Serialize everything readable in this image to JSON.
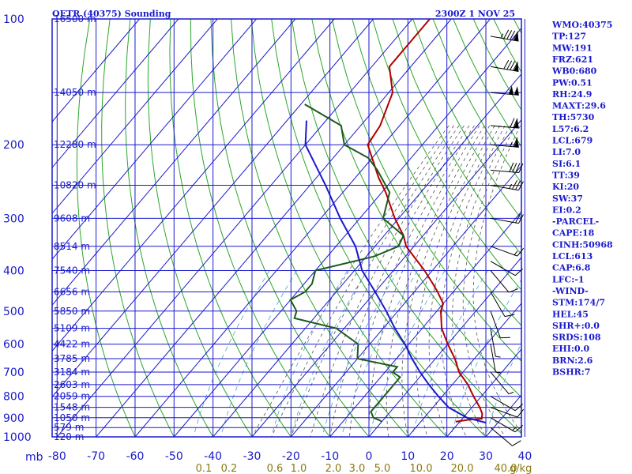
{
  "header": {
    "station": "OETR (40375) Sounding",
    "valid": "2300Z  1 NOV 25"
  },
  "chart_data": {
    "type": "line",
    "subtype": "skew-t log-p sounding",
    "pressure_axis": {
      "unit": "mb",
      "levels": [
        100,
        200,
        300,
        400,
        500,
        600,
        700,
        800,
        900,
        1000
      ]
    },
    "temperature_axis": {
      "unit": "C",
      "ticks": [
        "-80",
        "-70",
        "-60",
        "-50",
        "-40",
        "-30",
        "-20",
        "-10",
        "0",
        "10",
        "20",
        "30",
        "40"
      ]
    },
    "pressure_label": "mb",
    "heights": [
      {
        "p": 100,
        "label": "16500 m"
      },
      {
        "p": 150,
        "label": "14050 m"
      },
      {
        "p": 200,
        "label": "12280 m"
      },
      {
        "p": 250,
        "label": "10820 m"
      },
      {
        "p": 300,
        "label": "9608 m"
      },
      {
        "p": 350,
        "label": "8514 m"
      },
      {
        "p": 400,
        "label": "7540 m"
      },
      {
        "p": 450,
        "label": "6656 m"
      },
      {
        "p": 500,
        "label": "5850 m"
      },
      {
        "p": 550,
        "label": "5109 m"
      },
      {
        "p": 600,
        "label": "4422 m"
      },
      {
        "p": 650,
        "label": "3785 m"
      },
      {
        "p": 700,
        "label": "3184 m"
      },
      {
        "p": 750,
        "label": "2603 m"
      },
      {
        "p": 800,
        "label": "2059 m"
      },
      {
        "p": 850,
        "label": "1548 m"
      },
      {
        "p": 900,
        "label": "1050 m"
      },
      {
        "p": 950,
        "label": "579 m"
      },
      {
        "p": 1000,
        "label": "120 m"
      }
    ],
    "mixing_ratio": {
      "unit": "g/kg",
      "labels": [
        "0.1",
        "0.2",
        "0.6",
        "1.0",
        "2.0",
        "3.0",
        "5.0",
        "10.0",
        "20.0",
        "40.0"
      ],
      "unit_label": "g/kg"
    },
    "series": [
      {
        "name": "temperature",
        "color": "#b00000",
        "points": [
          [
            100,
            -75.5
          ],
          [
            130,
            -75.5
          ],
          [
            150,
            -69
          ],
          [
            180,
            -65
          ],
          [
            200,
            -64
          ],
          [
            240,
            -54
          ],
          [
            260,
            -49
          ],
          [
            300,
            -41
          ],
          [
            330,
            -35
          ],
          [
            350,
            -32
          ],
          [
            400,
            -22
          ],
          [
            430,
            -17
          ],
          [
            450,
            -14
          ],
          [
            480,
            -10
          ],
          [
            500,
            -9
          ],
          [
            550,
            -5
          ],
          [
            600,
            0
          ],
          [
            650,
            5
          ],
          [
            700,
            9
          ],
          [
            750,
            14
          ],
          [
            800,
            18
          ],
          [
            850,
            22
          ],
          [
            880,
            24
          ],
          [
            905,
            25
          ],
          [
            910,
            22
          ],
          [
            920,
            19
          ]
        ]
      },
      {
        "name": "dewpoint",
        "color": "#1e5a1e",
        "points": [
          [
            160,
            -89
          ],
          [
            180,
            -75
          ],
          [
            200,
            -70
          ],
          [
            215,
            -61
          ],
          [
            230,
            -56
          ],
          [
            260,
            -48
          ],
          [
            300,
            -44
          ],
          [
            330,
            -35
          ],
          [
            350,
            -34
          ],
          [
            370,
            -38
          ],
          [
            400,
            -50
          ],
          [
            430,
            -48
          ],
          [
            450,
            -48
          ],
          [
            470,
            -50
          ],
          [
            500,
            -46
          ],
          [
            520,
            -45
          ],
          [
            550,
            -32
          ],
          [
            600,
            -23
          ],
          [
            650,
            -20
          ],
          [
            680,
            -8
          ],
          [
            700,
            -8
          ],
          [
            720,
            -5
          ],
          [
            850,
            -5
          ],
          [
            870,
            -5
          ],
          [
            900,
            -3
          ],
          [
            912,
            -1
          ],
          [
            920,
            0
          ]
        ]
      },
      {
        "name": "parcel",
        "color": "#1a1acc",
        "points": [
          [
            175,
            -85
          ],
          [
            200,
            -80
          ],
          [
            250,
            -66
          ],
          [
            300,
            -55
          ],
          [
            350,
            -45
          ],
          [
            400,
            -38
          ],
          [
            450,
            -30
          ],
          [
            500,
            -23
          ],
          [
            550,
            -17
          ],
          [
            600,
            -11
          ],
          [
            650,
            -6
          ],
          [
            700,
            -1
          ],
          [
            750,
            4
          ],
          [
            800,
            9
          ],
          [
            850,
            14
          ],
          [
            900,
            21
          ],
          [
            925,
            27
          ]
        ]
      }
    ],
    "wind_barbs": [
      {
        "p": 110,
        "dir": 280,
        "spd": 95
      },
      {
        "p": 130,
        "dir": 280,
        "spd": 90
      },
      {
        "p": 150,
        "dir": 275,
        "spd": 100
      },
      {
        "p": 180,
        "dir": 275,
        "spd": 70
      },
      {
        "p": 200,
        "dir": 275,
        "spd": 65
      },
      {
        "p": 230,
        "dir": 275,
        "spd": 40
      },
      {
        "p": 250,
        "dir": 280,
        "spd": 35
      },
      {
        "p": 300,
        "dir": 280,
        "spd": 20
      },
      {
        "p": 350,
        "dir": 290,
        "spd": 15
      },
      {
        "p": 380,
        "dir": 300,
        "spd": 10
      },
      {
        "p": 400,
        "dir": 320,
        "spd": 10
      },
      {
        "p": 450,
        "dir": 330,
        "spd": 10
      },
      {
        "p": 500,
        "dir": 340,
        "spd": 10
      },
      {
        "p": 550,
        "dir": 350,
        "spd": 5
      },
      {
        "p": 600,
        "dir": 350,
        "spd": 5
      },
      {
        "p": 700,
        "dir": 320,
        "spd": 5
      },
      {
        "p": 800,
        "dir": 300,
        "spd": 10
      },
      {
        "p": 850,
        "dir": 290,
        "spd": 10
      },
      {
        "p": 900,
        "dir": 300,
        "spd": 15
      },
      {
        "p": 950,
        "dir": 310,
        "spd": 10
      }
    ]
  },
  "indices": [
    "WMO:40375",
    "TP:127",
    "MW:191",
    "FRZ:621",
    "WB0:680",
    "PW:0.51",
    "RH:24.9",
    "MAXT:29.6",
    "TH:5730",
    "L57:6.2",
    "LCL:679",
    "LI:7.0",
    "SI:6.1",
    "TT:39",
    "KI:20",
    "SW:37",
    "EI:0.2",
    "-PARCEL-",
    "CAPE:18",
    "CINH:50968",
    "LCL:613",
    "CAP:6.8",
    "LFC:-1",
    "-WIND-",
    "STM:174/7",
    "HEL:45",
    "SHR+:0.0",
    "SRDS:108",
    "EHI:0.0",
    "BRN:2.6",
    "BSHR:7"
  ],
  "colors": {
    "axis": "#1a1acc",
    "isotherm": "#1a1acc",
    "dry_adiabat": "#2aa62a",
    "moist_adiabat": "#555555",
    "mixing_ratio": "#4aa0d0",
    "mixing_label": "#8a7a12"
  }
}
